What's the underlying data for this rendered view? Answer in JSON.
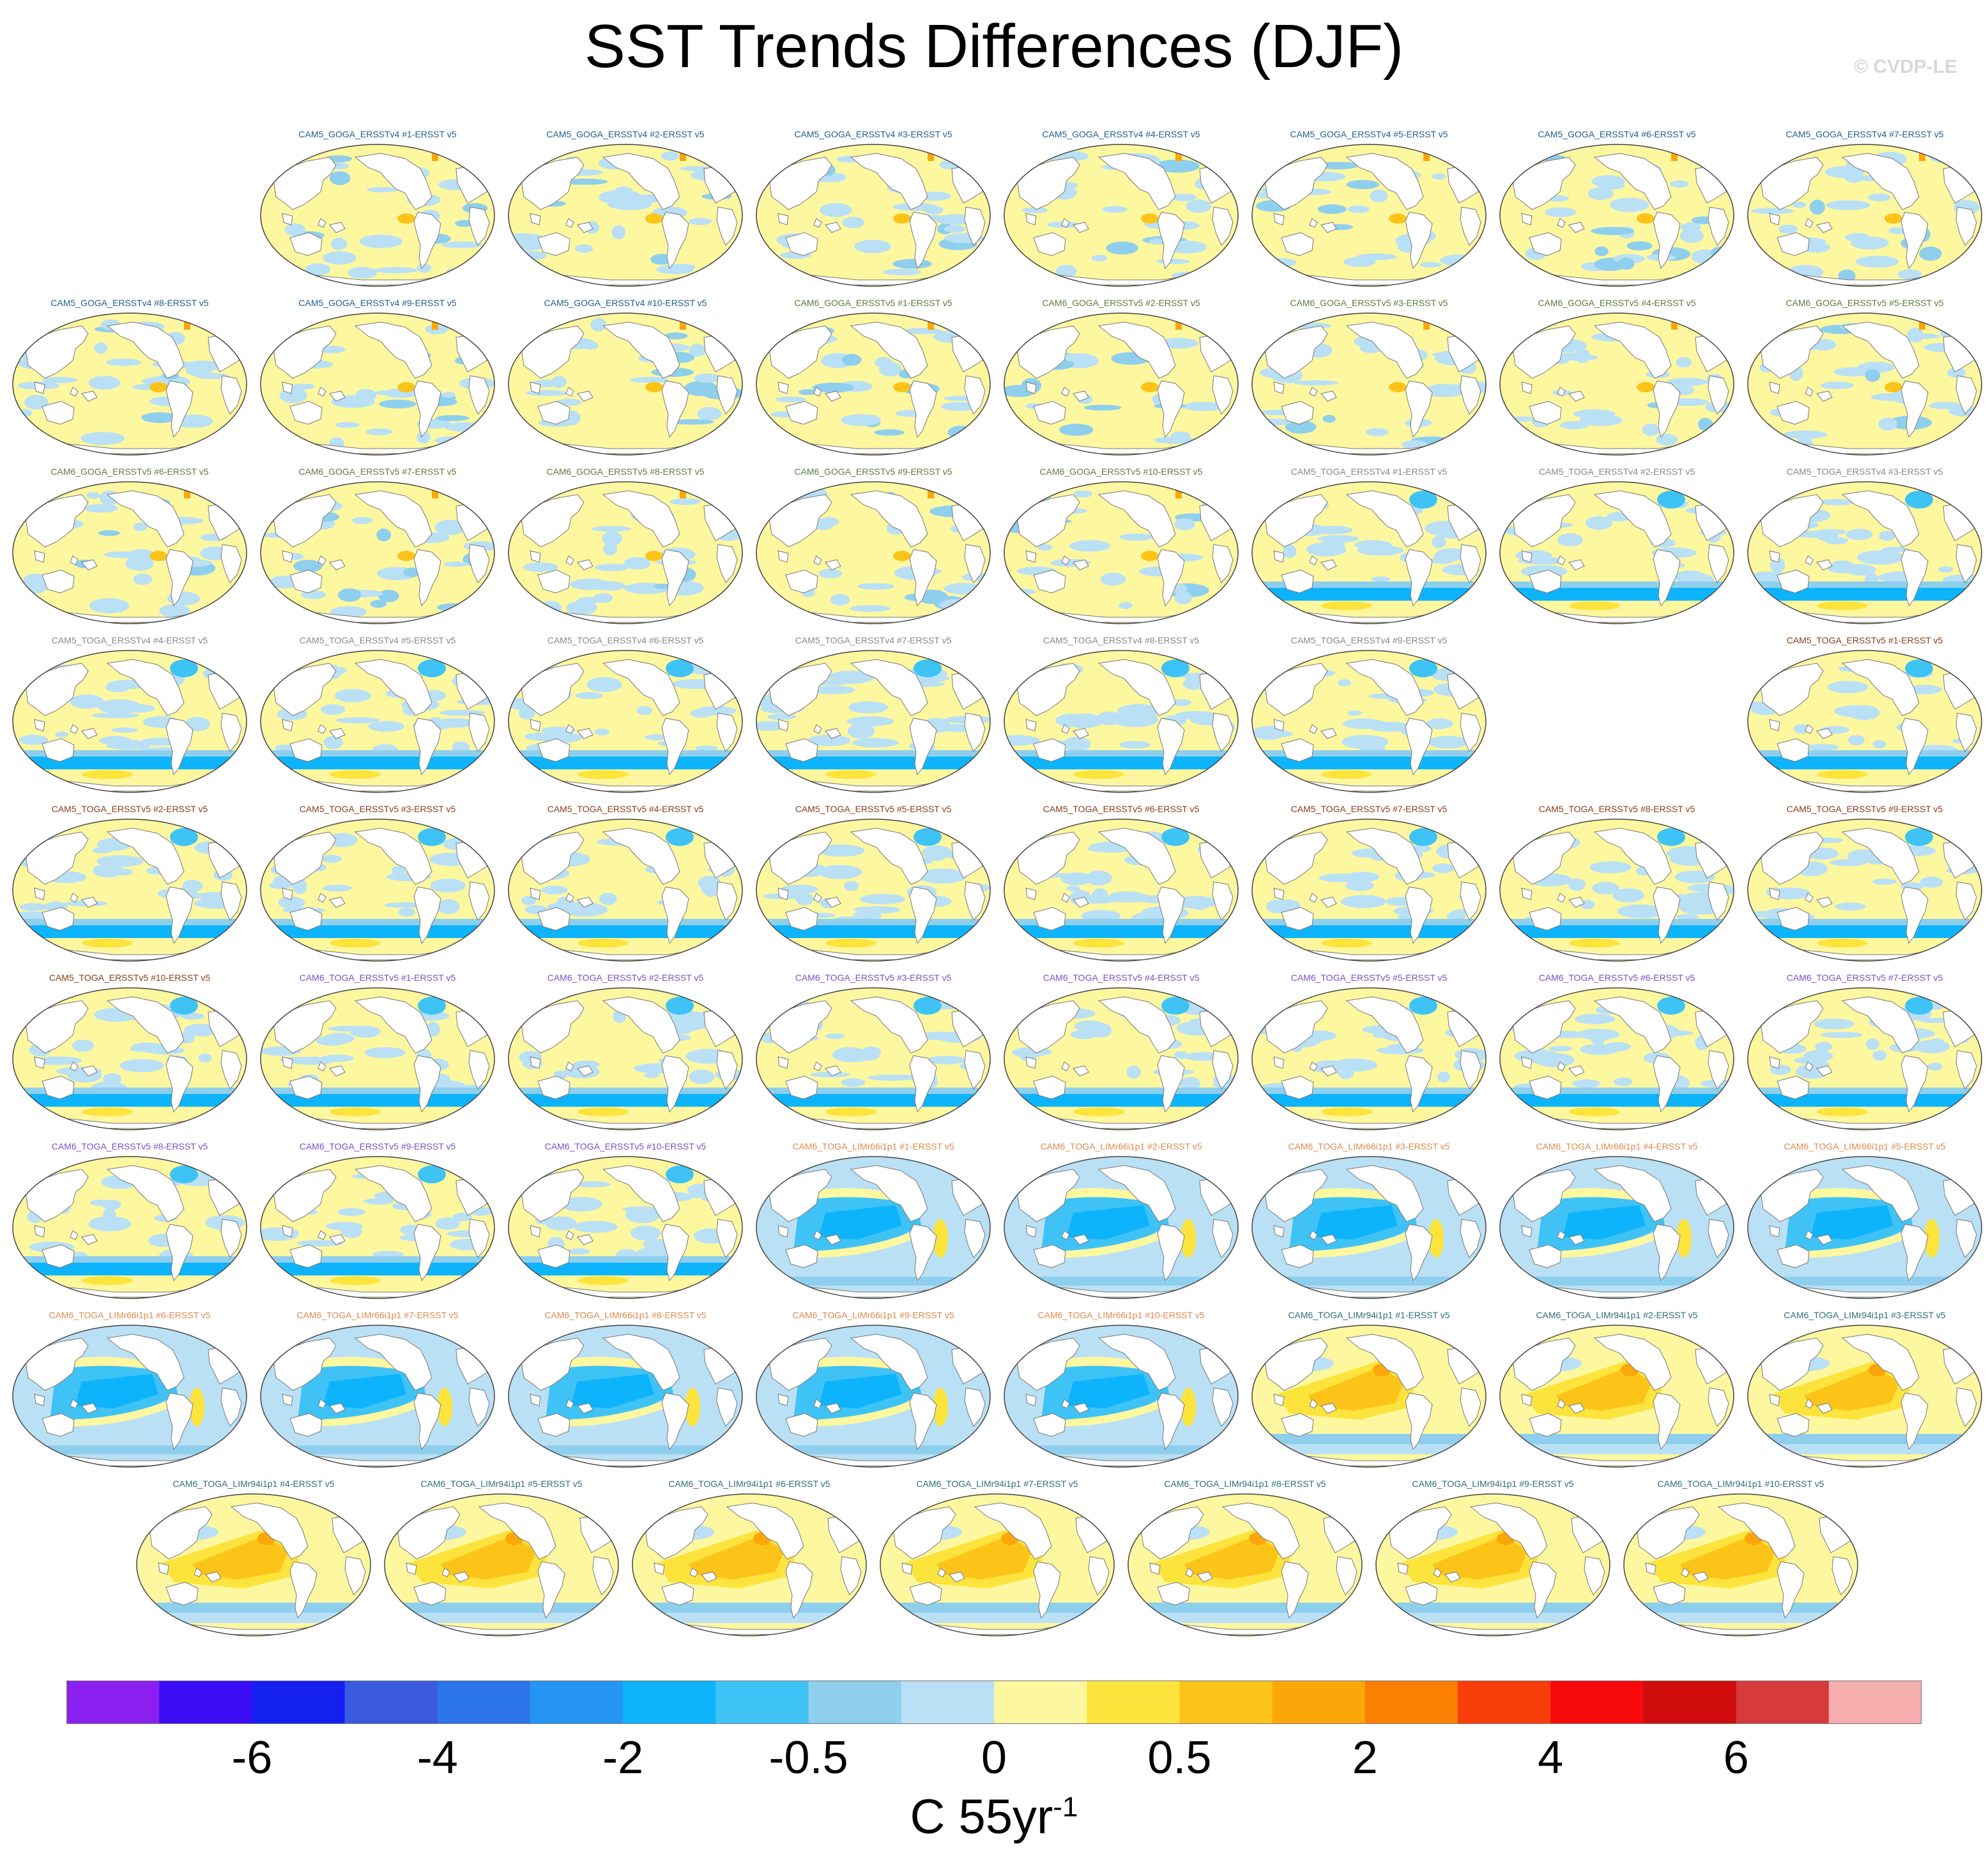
{
  "title": "SST Trends Differences (DJF)",
  "copyright": "© CVDP-LE",
  "colorbar": {
    "colors": [
      "#8a1ff0",
      "#3b0df5",
      "#1320f0",
      "#3a5be0",
      "#2c75ea",
      "#2595f4",
      "#0db4fb",
      "#3fc3f6",
      "#8fcfee",
      "#b9e0f5",
      "#fdf7a0",
      "#fde43c",
      "#fcc419",
      "#fba70a",
      "#fb7f02",
      "#f83c0a",
      "#f60a0a",
      "#d00c0c",
      "#d63a3a",
      "#f6aeae"
    ],
    "tick_labels": [
      "-6",
      "-4",
      "-2",
      "-0.5",
      "0",
      "0.5",
      "2",
      "4",
      "6"
    ],
    "tick_boundary_index": [
      2,
      4,
      6,
      8,
      10,
      12,
      14,
      16,
      18
    ],
    "units_main": "C 55yr",
    "units_sup": "-1"
  },
  "groups": {
    "goga4": {
      "color": "#1f5f8c",
      "pattern": "goga"
    },
    "goga5": {
      "color": "#5b7d3e",
      "pattern": "goga"
    },
    "toga4": {
      "color": "#888888",
      "pattern": "toga"
    },
    "toga5": {
      "color": "#8b3d1a",
      "pattern": "toga"
    },
    "toga6": {
      "color": "#7a50c8",
      "pattern": "toga"
    },
    "lim66": {
      "color": "#e08a50",
      "pattern": "lim66"
    },
    "lim94": {
      "color": "#2f6e78",
      "pattern": "lim94"
    }
  },
  "panels": [
    {
      "label": "CAM5_GOGA_ERSSTv4 #1-ERSST v5",
      "group": "goga4",
      "row": 0,
      "col": 1
    },
    {
      "label": "CAM5_GOGA_ERSSTv4 #2-ERSST v5",
      "group": "goga4",
      "row": 0,
      "col": 2
    },
    {
      "label": "CAM5_GOGA_ERSSTv4 #3-ERSST v5",
      "group": "goga4",
      "row": 0,
      "col": 3
    },
    {
      "label": "CAM5_GOGA_ERSSTv4 #4-ERSST v5",
      "group": "goga4",
      "row": 0,
      "col": 4
    },
    {
      "label": "CAM5_GOGA_ERSSTv4 #5-ERSST v5",
      "group": "goga4",
      "row": 0,
      "col": 5
    },
    {
      "label": "CAM5_GOGA_ERSSTv4 #6-ERSST v5",
      "group": "goga4",
      "row": 0,
      "col": 6
    },
    {
      "label": "CAM5_GOGA_ERSSTv4 #7-ERSST v5",
      "group": "goga4",
      "row": 0,
      "col": 7
    },
    {
      "label": "CAM5_GOGA_ERSSTv4 #8-ERSST v5",
      "group": "goga4",
      "row": 1,
      "col": 0
    },
    {
      "label": "CAM5_GOGA_ERSSTv4 #9-ERSST v5",
      "group": "goga4",
      "row": 1,
      "col": 1
    },
    {
      "label": "CAM5_GOGA_ERSSTv4 #10-ERSST v5",
      "group": "goga4",
      "row": 1,
      "col": 2
    },
    {
      "label": "CAM6_GOGA_ERSSTv5 #1-ERSST v5",
      "group": "goga5",
      "row": 1,
      "col": 3
    },
    {
      "label": "CAM6_GOGA_ERSSTv5 #2-ERSST v5",
      "group": "goga5",
      "row": 1,
      "col": 4
    },
    {
      "label": "CAM6_GOGA_ERSSTv5 #3-ERSST v5",
      "group": "goga5",
      "row": 1,
      "col": 5
    },
    {
      "label": "CAM6_GOGA_ERSSTv5 #4-ERSST v5",
      "group": "goga5",
      "row": 1,
      "col": 6
    },
    {
      "label": "CAM6_GOGA_ERSSTv5 #5-ERSST v5",
      "group": "goga5",
      "row": 1,
      "col": 7
    },
    {
      "label": "CAM6_GOGA_ERSSTv5 #6-ERSST v5",
      "group": "goga5",
      "row": 2,
      "col": 0
    },
    {
      "label": "CAM6_GOGA_ERSSTv5 #7-ERSST v5",
      "group": "goga5",
      "row": 2,
      "col": 1
    },
    {
      "label": "CAM6_GOGA_ERSSTv5 #8-ERSST v5",
      "group": "goga5",
      "row": 2,
      "col": 2
    },
    {
      "label": "CAM6_GOGA_ERSSTv5 #9-ERSST v5",
      "group": "goga5",
      "row": 2,
      "col": 3
    },
    {
      "label": "CAM6_GOGA_ERSSTv5 #10-ERSST v5",
      "group": "goga5",
      "row": 2,
      "col": 4
    },
    {
      "label": "CAM5_TOGA_ERSSTv4 #1-ERSST v5",
      "group": "toga4",
      "row": 2,
      "col": 5
    },
    {
      "label": "CAM5_TOGA_ERSSTv4 #2-ERSST v5",
      "group": "toga4",
      "row": 2,
      "col": 6
    },
    {
      "label": "CAM5_TOGA_ERSSTv4 #3-ERSST v5",
      "group": "toga4",
      "row": 2,
      "col": 7
    },
    {
      "label": "CAM5_TOGA_ERSSTv4 #4-ERSST v5",
      "group": "toga4",
      "row": 3,
      "col": 0
    },
    {
      "label": "CAM5_TOGA_ERSSTv4 #5-ERSST v5",
      "group": "toga4",
      "row": 3,
      "col": 1
    },
    {
      "label": "CAM5_TOGA_ERSSTv4 #6-ERSST v5",
      "group": "toga4",
      "row": 3,
      "col": 2
    },
    {
      "label": "CAM5_TOGA_ERSSTv4 #7-ERSST v5",
      "group": "toga4",
      "row": 3,
      "col": 3
    },
    {
      "label": "CAM5_TOGA_ERSSTv4 #8-ERSST v5",
      "group": "toga4",
      "row": 3,
      "col": 4
    },
    {
      "label": "CAM5_TOGA_ERSSTv4 #9-ERSST v5",
      "group": "toga4",
      "row": 3,
      "col": 5
    },
    {
      "label": "CAM5_TOGA_ERSSTv5 #1-ERSST v5",
      "group": "toga5",
      "row": 3,
      "col": 7
    },
    {
      "label": "CAM5_TOGA_ERSSTv5 #2-ERSST v5",
      "group": "toga5",
      "row": 4,
      "col": 0
    },
    {
      "label": "CAM5_TOGA_ERSSTv5 #3-ERSST v5",
      "group": "toga5",
      "row": 4,
      "col": 1
    },
    {
      "label": "CAM5_TOGA_ERSSTv5 #4-ERSST v5",
      "group": "toga5",
      "row": 4,
      "col": 2
    },
    {
      "label": "CAM5_TOGA_ERSSTv5 #5-ERSST v5",
      "group": "toga5",
      "row": 4,
      "col": 3
    },
    {
      "label": "CAM5_TOGA_ERSSTv5 #6-ERSST v5",
      "group": "toga5",
      "row": 4,
      "col": 4
    },
    {
      "label": "CAM5_TOGA_ERSSTv5 #7-ERSST v5",
      "group": "toga5",
      "row": 4,
      "col": 5
    },
    {
      "label": "CAM5_TOGA_ERSSTv5 #8-ERSST v5",
      "group": "toga5",
      "row": 4,
      "col": 6
    },
    {
      "label": "CAM5_TOGA_ERSSTv5 #9-ERSST v5",
      "group": "toga5",
      "row": 4,
      "col": 7
    },
    {
      "label": "CAM5_TOGA_ERSSTv5 #10-ERSST v5",
      "group": "toga5",
      "row": 5,
      "col": 0
    },
    {
      "label": "CAM6_TOGA_ERSSTv5 #1-ERSST v5",
      "group": "toga6",
      "row": 5,
      "col": 1
    },
    {
      "label": "CAM6_TOGA_ERSSTv5 #2-ERSST v5",
      "group": "toga6",
      "row": 5,
      "col": 2
    },
    {
      "label": "CAM6_TOGA_ERSSTv5 #3-ERSST v5",
      "group": "toga6",
      "row": 5,
      "col": 3
    },
    {
      "label": "CAM6_TOGA_ERSSTv5 #4-ERSST v5",
      "group": "toga6",
      "row": 5,
      "col": 4
    },
    {
      "label": "CAM6_TOGA_ERSSTv5 #5-ERSST v5",
      "group": "toga6",
      "row": 5,
      "col": 5
    },
    {
      "label": "CAM6_TOGA_ERSSTv5 #6-ERSST v5",
      "group": "toga6",
      "row": 5,
      "col": 6
    },
    {
      "label": "CAM6_TOGA_ERSSTv5 #7-ERSST v5",
      "group": "toga6",
      "row": 5,
      "col": 7
    },
    {
      "label": "CAM6_TOGA_ERSSTv5 #8-ERSST v5",
      "group": "toga6",
      "row": 6,
      "col": 0
    },
    {
      "label": "CAM6_TOGA_ERSSTv5 #9-ERSST v5",
      "group": "toga6",
      "row": 6,
      "col": 1
    },
    {
      "label": "CAM6_TOGA_ERSSTv5 #10-ERSST v5",
      "group": "toga6",
      "row": 6,
      "col": 2
    },
    {
      "label": "CAM6_TOGA_LIMr66i1p1 #1-ERSST v5",
      "group": "lim66",
      "row": 6,
      "col": 3
    },
    {
      "label": "CAM6_TOGA_LIMr66i1p1 #2-ERSST v5",
      "group": "lim66",
      "row": 6,
      "col": 4
    },
    {
      "label": "CAM6_TOGA_LIMr66i1p1 #3-ERSST v5",
      "group": "lim66",
      "row": 6,
      "col": 5
    },
    {
      "label": "CAM6_TOGA_LIMr66i1p1 #4-ERSST v5",
      "group": "lim66",
      "row": 6,
      "col": 6
    },
    {
      "label": "CAM6_TOGA_LIMr66i1p1 #5-ERSST v5",
      "group": "lim66",
      "row": 6,
      "col": 7
    },
    {
      "label": "CAM6_TOGA_LIMr66i1p1 #6-ERSST v5",
      "group": "lim66",
      "row": 7,
      "col": 0
    },
    {
      "label": "CAM6_TOGA_LIMr66i1p1 #7-ERSST v5",
      "group": "lim66",
      "row": 7,
      "col": 1
    },
    {
      "label": "CAM6_TOGA_LIMr66i1p1 #8-ERSST v5",
      "group": "lim66",
      "row": 7,
      "col": 2
    },
    {
      "label": "CAM6_TOGA_LIMr66i1p1 #9-ERSST v5",
      "group": "lim66",
      "row": 7,
      "col": 3
    },
    {
      "label": "CAM6_TOGA_LIMr66i1p1 #10-ERSST v5",
      "group": "lim66",
      "row": 7,
      "col": 4
    },
    {
      "label": "CAM6_TOGA_LIMr94i1p1 #1-ERSST v5",
      "group": "lim94",
      "row": 7,
      "col": 5
    },
    {
      "label": "CAM6_TOGA_LIMr94i1p1 #2-ERSST v5",
      "group": "lim94",
      "row": 7,
      "col": 6
    },
    {
      "label": "CAM6_TOGA_LIMr94i1p1 #3-ERSST v5",
      "group": "lim94",
      "row": 7,
      "col": 7
    },
    {
      "label": "CAM6_TOGA_LIMr94i1p1 #4-ERSST v5",
      "group": "lim94",
      "row": 8,
      "col": 0
    },
    {
      "label": "CAM6_TOGA_LIMr94i1p1 #5-ERSST v5",
      "group": "lim94",
      "row": 8,
      "col": 1
    },
    {
      "label": "CAM6_TOGA_LIMr94i1p1 #6-ERSST v5",
      "group": "lim94",
      "row": 8,
      "col": 2
    },
    {
      "label": "CAM6_TOGA_LIMr94i1p1 #7-ERSST v5",
      "group": "lim94",
      "row": 8,
      "col": 3
    },
    {
      "label": "CAM6_TOGA_LIMr94i1p1 #8-ERSST v5",
      "group": "lim94",
      "row": 8,
      "col": 4
    },
    {
      "label": "CAM6_TOGA_LIMr94i1p1 #9-ERSST v5",
      "group": "lim94",
      "row": 8,
      "col": 5
    },
    {
      "label": "CAM6_TOGA_LIMr94i1p1 #10-ERSST v5",
      "group": "lim94",
      "row": 8,
      "col": 6
    }
  ]
}
